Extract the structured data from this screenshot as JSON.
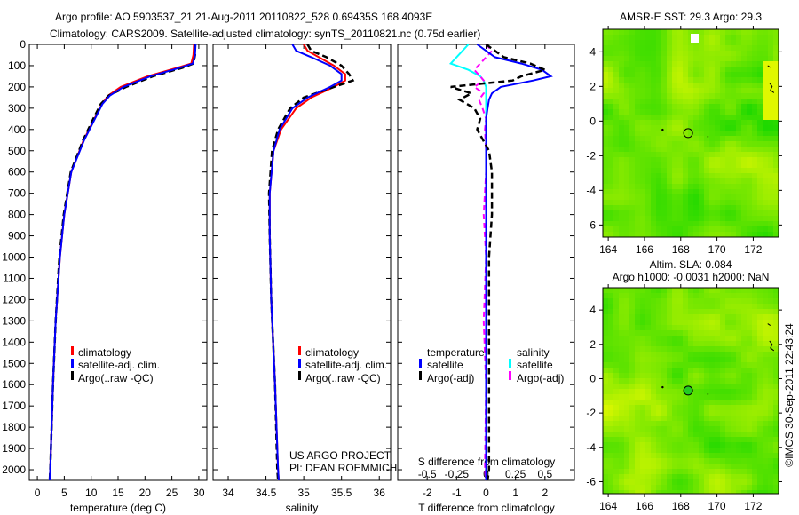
{
  "title": {
    "line1": "Argo profile: AO 5903537_21 21-Aug-2011 20110822_528 0.69435S 168.4093E",
    "line2": "Climatology: CARS2009. Satellite-adjusted climatology: synTS_20110821.nc (0.75d earlier)"
  },
  "credit": "©IMOS 30-Sep-2011 22:43:24",
  "project": {
    "line1": "US ARGO PROJECT",
    "line2": "PI: DEAN ROEMMICH"
  },
  "colors": {
    "climatology": "#ff0000",
    "satellite": "#0000ff",
    "argo": "#000000",
    "sal_satellite": "#00ffff",
    "sal_argo": "#ff00ff"
  },
  "chart_data": [
    {
      "type": "line",
      "name": "temperature",
      "xlabel": "temperature (deg C)",
      "ylabel": "depth",
      "xlim": [
        -1.5,
        31.5
      ],
      "ylim": [
        2050,
        0
      ],
      "xticks": [
        0,
        5,
        10,
        15,
        20,
        25,
        30
      ],
      "yticks": [
        0,
        100,
        200,
        300,
        400,
        500,
        600,
        700,
        800,
        900,
        1000,
        1100,
        1200,
        1300,
        1400,
        1500,
        1600,
        1700,
        1800,
        1900,
        2000
      ],
      "legend": [
        "climatology",
        "satellite-adj. clim.",
        "Argo(..raw -QC)"
      ],
      "depth": [
        0,
        50,
        90,
        110,
        150,
        200,
        240,
        280,
        350,
        450,
        600,
        800,
        1000,
        1300,
        1600,
        2000,
        2050
      ],
      "series": [
        {
          "name": "climatology",
          "values": [
            29.1,
            29.0,
            28.6,
            26,
            20.5,
            15.5,
            13.2,
            12.0,
            10.6,
            8.6,
            6.3,
            5.0,
            4.2,
            3.4,
            2.9,
            2.4,
            2.3
          ]
        },
        {
          "name": "satellite-adj. clim.",
          "values": [
            29.4,
            29.3,
            28.9,
            26.5,
            21,
            16,
            13.5,
            12.1,
            10.7,
            8.7,
            6.3,
            5.0,
            4.2,
            3.4,
            2.9,
            2.4,
            2.3
          ]
        },
        {
          "name": "Argo(..raw -QC)",
          "values": [
            29.3,
            29.3,
            29.0,
            27,
            21.5,
            16.5,
            13.3,
            11.8,
            10.4,
            8.5,
            6.2,
            4.9,
            4.1,
            3.4,
            2.9,
            2.4,
            2.3
          ]
        }
      ]
    },
    {
      "type": "line",
      "name": "salinity",
      "xlabel": "salinity",
      "xlim": [
        33.8,
        36.15
      ],
      "ylim": [
        2050,
        0
      ],
      "xticks": [
        34,
        34.5,
        35,
        35.5,
        36
      ],
      "legend": [
        "climatology",
        "satellite-adj. clim.",
        "Argo(..raw -QC)"
      ],
      "depth": [
        0,
        30,
        60,
        100,
        140,
        170,
        200,
        250,
        300,
        400,
        500,
        700,
        900,
        1200,
        1600,
        2000,
        2050
      ],
      "series": [
        {
          "name": "climatology",
          "values": [
            35.0,
            35.05,
            35.2,
            35.4,
            35.55,
            35.55,
            35.4,
            35.1,
            34.9,
            34.7,
            34.6,
            34.55,
            34.55,
            34.57,
            34.62,
            34.66,
            34.67
          ]
        },
        {
          "name": "satellite-adj. clim.",
          "values": [
            34.85,
            34.9,
            35.1,
            35.35,
            35.5,
            35.5,
            35.35,
            35.05,
            34.85,
            34.68,
            34.6,
            34.55,
            34.55,
            34.57,
            34.62,
            34.66,
            34.67
          ]
        },
        {
          "name": "Argo(..raw -QC)",
          "values": [
            35.05,
            35.1,
            35.3,
            35.5,
            35.6,
            35.65,
            35.4,
            35.0,
            34.82,
            34.66,
            34.58,
            34.54,
            34.55,
            34.57,
            34.62,
            34.65,
            34.66
          ]
        }
      ]
    },
    {
      "type": "line",
      "name": "differences",
      "xlabel": "T difference from climatology",
      "x2label": "S difference from climatology",
      "xlim": [
        -3,
        3
      ],
      "x2lim": [
        -0.75,
        0.75
      ],
      "ylim": [
        2050,
        0
      ],
      "xticks": [
        -2,
        -1,
        0,
        1,
        2
      ],
      "x2ticks": [
        -0.5,
        -0.25,
        0,
        0.25,
        0.5
      ],
      "legend": {
        "temperature": "temperature",
        "salinity": "salinity",
        "satellite": "satellite",
        "argo": "Argo(-adj)"
      },
      "depth": [
        0,
        30,
        60,
        90,
        120,
        150,
        170,
        200,
        230,
        260,
        300,
        350,
        400,
        500,
        600,
        800,
        1000,
        1300,
        1600,
        2000,
        2050
      ],
      "series": [
        {
          "name": "T satellite",
          "values": [
            -0.3,
            0.0,
            0.3,
            1.2,
            1.9,
            2.2,
            1.6,
            0.5,
            0.2,
            0.1,
            0.05,
            0.0,
            0.0,
            0.0,
            0.0,
            0.0,
            0.0,
            0.0,
            0.0,
            0.0,
            0.0
          ]
        },
        {
          "name": "T Argo(-adj)",
          "values": [
            0.0,
            0.3,
            0.6,
            1.5,
            2.0,
            1.2,
            0.9,
            -1.2,
            -0.5,
            -0.9,
            -0.4,
            -0.2,
            -0.3,
            0.1,
            0.2,
            0.2,
            0.1,
            0.1,
            0.1,
            0.1,
            0.05
          ]
        },
        {
          "name": "S satellite",
          "values": [
            -0.15,
            -0.2,
            -0.25,
            -0.3,
            -0.15,
            -0.05,
            -0.02,
            0.0,
            0.0,
            0.0,
            0.0,
            0.0,
            0.0,
            0.0,
            0.0,
            0.0,
            0.0,
            0.0,
            0.0,
            0.0,
            0.0
          ]
        },
        {
          "name": "S Argo(-adj)",
          "values": [
            0.0,
            0.05,
            0.0,
            -0.05,
            -0.1,
            -0.05,
            -0.02,
            -0.1,
            -0.02,
            -0.06,
            -0.03,
            0.0,
            -0.01,
            0.0,
            0.0,
            -0.02,
            0.0,
            -0.02,
            0.0,
            -0.01,
            0.0
          ]
        }
      ]
    },
    {
      "type": "heatmap",
      "name": "sst-map",
      "title": "AMSR-E SST: 29.3 Argo: 29.3",
      "xlim": [
        163.7,
        173.4
      ],
      "ylim": [
        -6.7,
        5.3
      ],
      "xticks": [
        164,
        166,
        168,
        170,
        172
      ],
      "yticks": [
        -6,
        -4,
        -2,
        0,
        2,
        4
      ],
      "float_position": {
        "lon": 168.4093,
        "lat": -0.69435
      }
    },
    {
      "type": "heatmap",
      "name": "sla-map",
      "title": "Altim. SLA: 0.084",
      "subtitle": "Argo h1000: -0.0031 h2000: NaN",
      "xlim": [
        163.7,
        173.4
      ],
      "ylim": [
        -6.7,
        5.3
      ],
      "xticks": [
        164,
        166,
        168,
        170,
        172
      ],
      "yticks": [
        -6,
        -4,
        -2,
        0,
        2,
        4
      ],
      "float_position": {
        "lon": 168.4093,
        "lat": -0.69435
      }
    }
  ]
}
